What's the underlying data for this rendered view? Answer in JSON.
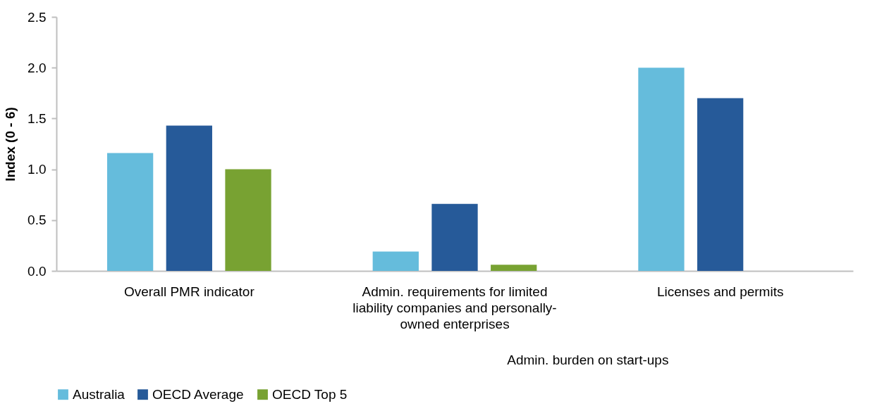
{
  "chart_data": {
    "type": "bar",
    "ylabel": "Index (0 - 6)",
    "categories": [
      "Overall PMR indicator",
      "Admin. requirements for limited liability companies and personally-owned enterprises",
      "Licenses and permits"
    ],
    "series": [
      {
        "name": "Australia",
        "color": "#65bcdc",
        "values": [
          1.16,
          0.19,
          2.0
        ]
      },
      {
        "name": "OECD Average",
        "color": "#265a99",
        "values": [
          1.43,
          0.66,
          1.7
        ]
      },
      {
        "name": "OECD Top 5",
        "color": "#78a232",
        "values": [
          1.0,
          0.06,
          null
        ]
      }
    ],
    "ylim": [
      0,
      2.5
    ],
    "yticks": [
      {
        "value": 0,
        "label": "0.0"
      },
      0.5,
      {
        "value": 1,
        "label": "1.0"
      },
      1.5,
      {
        "value": 2,
        "label": "2.0"
      },
      2.5
    ],
    "annotations": [
      "Admin. burden on start-ups"
    ],
    "grid": false,
    "legend": "bottom"
  }
}
